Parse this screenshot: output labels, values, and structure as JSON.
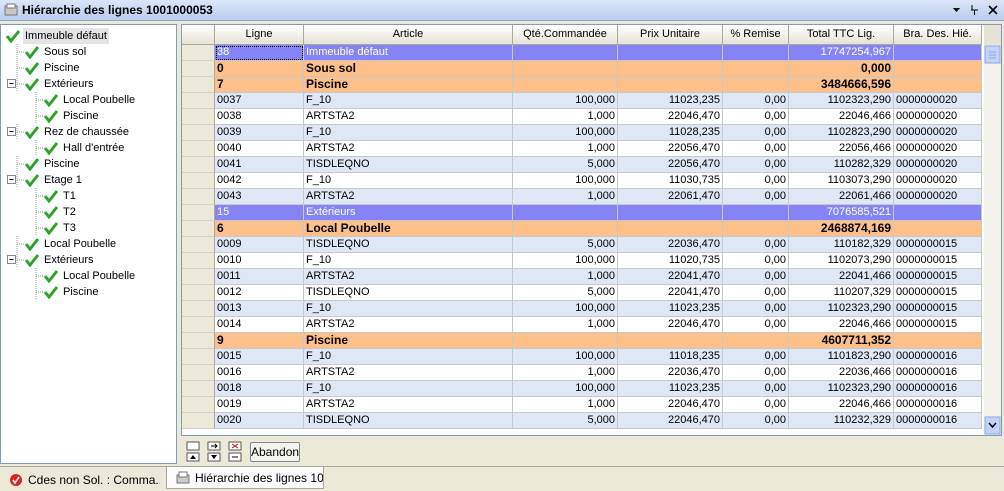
{
  "window": {
    "title": "Hiérarchie des lignes  1001000053"
  },
  "tree": {
    "nodes": [
      {
        "label": "Immeuble défaut"
      },
      {
        "label": "Sous sol",
        "level": 1
      },
      {
        "label": "Piscine",
        "level": 1
      },
      {
        "label": "Extérieurs",
        "level": 1,
        "expanded": true
      },
      {
        "label": "Local Poubelle",
        "level": 2
      },
      {
        "label": "Piscine",
        "level": 2
      },
      {
        "label": "Rez de chaussée",
        "level": 1,
        "expanded": true
      },
      {
        "label": "Hall d'entrée",
        "level": 2
      },
      {
        "label": "Piscine",
        "level": 1
      },
      {
        "label": "Etage 1",
        "level": 1,
        "expanded": true
      },
      {
        "label": "T1",
        "level": 2
      },
      {
        "label": "T2",
        "level": 2
      },
      {
        "label": "T3",
        "level": 2
      },
      {
        "label": "Local Poubelle",
        "level": 1
      },
      {
        "label": "Extérieurs",
        "level": 1,
        "expanded": true
      },
      {
        "label": "Local Poubelle",
        "level": 2
      },
      {
        "label": "Piscine",
        "level": 2
      }
    ]
  },
  "table": {
    "columns": [
      "Ligne",
      "Article",
      "Qté.Commandée",
      "Prix Unitaire",
      "% Remise",
      "Total TTC Lig.",
      "Bra. Des. Hié."
    ],
    "rows": [
      {
        "color": "#8484f7",
        "cells": [
          "38",
          "Immeuble défaut",
          null,
          null,
          null,
          "17747254,967",
          null
        ]
      },
      {
        "color": "#fdc08a",
        "bold": true,
        "cells": [
          "0",
          "Sous sol",
          null,
          null,
          null,
          "0,000",
          null
        ]
      },
      {
        "color": "#fdc08a",
        "bold": true,
        "cells": [
          "7",
          "Piscine",
          null,
          null,
          null,
          "3484666,596",
          null
        ]
      },
      {
        "cells": [
          "0037",
          "F_10",
          "100,000",
          "11023,235",
          "0,00",
          "1102323,290",
          "0000000020"
        ]
      },
      {
        "cells": [
          "0038",
          "ARTSTA2",
          "1,000",
          "22046,470",
          "0,00",
          "22046,466",
          "0000000020"
        ]
      },
      {
        "cells": [
          "0039",
          "F_10",
          "100,000",
          "11028,235",
          "0,00",
          "1102823,290",
          "0000000020"
        ]
      },
      {
        "cells": [
          "0040",
          "ARTSTA2",
          "1,000",
          "22056,470",
          "0,00",
          "22056,466",
          "0000000020"
        ]
      },
      {
        "cells": [
          "0041",
          "TISDLEQNO",
          "5,000",
          "22056,470",
          "0,00",
          "110282,329",
          "0000000020"
        ]
      },
      {
        "cells": [
          "0042",
          "F_10",
          "100,000",
          "11030,735",
          "0,00",
          "1103073,290",
          "0000000020"
        ]
      },
      {
        "cells": [
          "0043",
          "ARTSTA2",
          "1,000",
          "22061,470",
          "0,00",
          "22061,466",
          "0000000020"
        ]
      },
      {
        "color": "#8484f7",
        "cells": [
          "15",
          "Extérieurs",
          null,
          null,
          null,
          "7076585,521",
          null
        ]
      },
      {
        "color": "#fdc08a",
        "bold": true,
        "cells": [
          "6",
          "Local Poubelle",
          null,
          null,
          null,
          "2468874,169",
          null
        ]
      },
      {
        "cells": [
          "0009",
          "TISDLEQNO",
          "5,000",
          "22036,470",
          "0,00",
          "110182,329",
          "0000000015"
        ]
      },
      {
        "cells": [
          "0010",
          "F_10",
          "100,000",
          "11020,735",
          "0,00",
          "1102073,290",
          "0000000015"
        ]
      },
      {
        "cells": [
          "0011",
          "ARTSTA2",
          "1,000",
          "22041,470",
          "0,00",
          "22041,466",
          "0000000015"
        ]
      },
      {
        "cells": [
          "0012",
          "TISDLEQNO",
          "5,000",
          "22041,470",
          "0,00",
          "110207,329",
          "0000000015"
        ]
      },
      {
        "cells": [
          "0013",
          "F_10",
          "100,000",
          "11023,235",
          "0,00",
          "1102323,290",
          "0000000015"
        ]
      },
      {
        "cells": [
          "0014",
          "ARTSTA2",
          "1,000",
          "22046,470",
          "0,00",
          "22046,466",
          "0000000015"
        ]
      },
      {
        "color": "#fdc08a",
        "bold": true,
        "cells": [
          "9",
          "Piscine",
          null,
          null,
          null,
          "4607711,352",
          null
        ]
      },
      {
        "cells": [
          "0015",
          "F_10",
          "100,000",
          "11018,235",
          "0,00",
          "1101823,290",
          "0000000016"
        ]
      },
      {
        "cells": [
          "0016",
          "ARTSTA2",
          "1,000",
          "22036,470",
          "0,00",
          "22036,466",
          "0000000016"
        ]
      },
      {
        "cells": [
          "0018",
          "F_10",
          "100,000",
          "11023,235",
          "0,00",
          "1102323,290",
          "0000000016"
        ]
      },
      {
        "cells": [
          "0019",
          "ARTSTA2",
          "1,000",
          "22046,470",
          "0,00",
          "22046,466",
          "0000000016"
        ]
      },
      {
        "cells": [
          "0020",
          "TISDLEQNO",
          "5,000",
          "22046,470",
          "0,00",
          "110232,329",
          "0000000016"
        ]
      }
    ]
  },
  "toolbar": {
    "button": "Abandon"
  },
  "tabs": [
    "Cdes non Sol. : Comma...",
    "Hiérarchie des lignes  10..."
  ]
}
